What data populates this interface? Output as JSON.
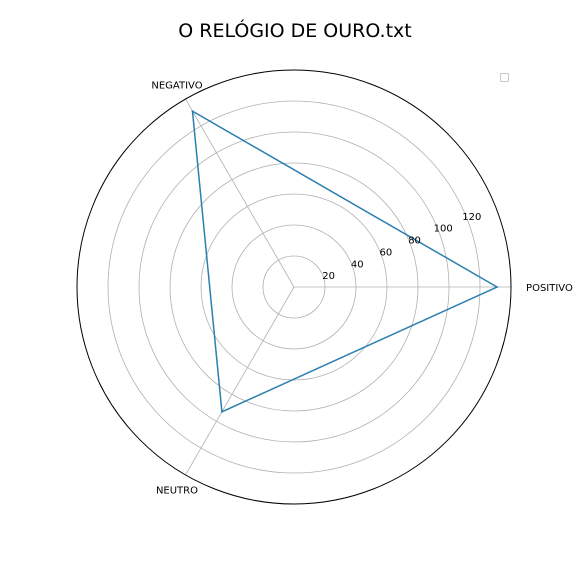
{
  "chart_data": {
    "type": "radar",
    "title": "O RELÓGIO DE OURO.txt",
    "categories": [
      "POSITIVO",
      "NEGATIVO",
      "NEUTRO"
    ],
    "series": [
      {
        "values": [
          131,
          131,
          93
        ],
        "color": "#2a7fb0"
      }
    ],
    "radial_ticks": [
      20,
      40,
      60,
      80,
      100,
      120
    ],
    "rmax": 140,
    "grid": true,
    "legend": "top-right",
    "legend_entries": []
  }
}
